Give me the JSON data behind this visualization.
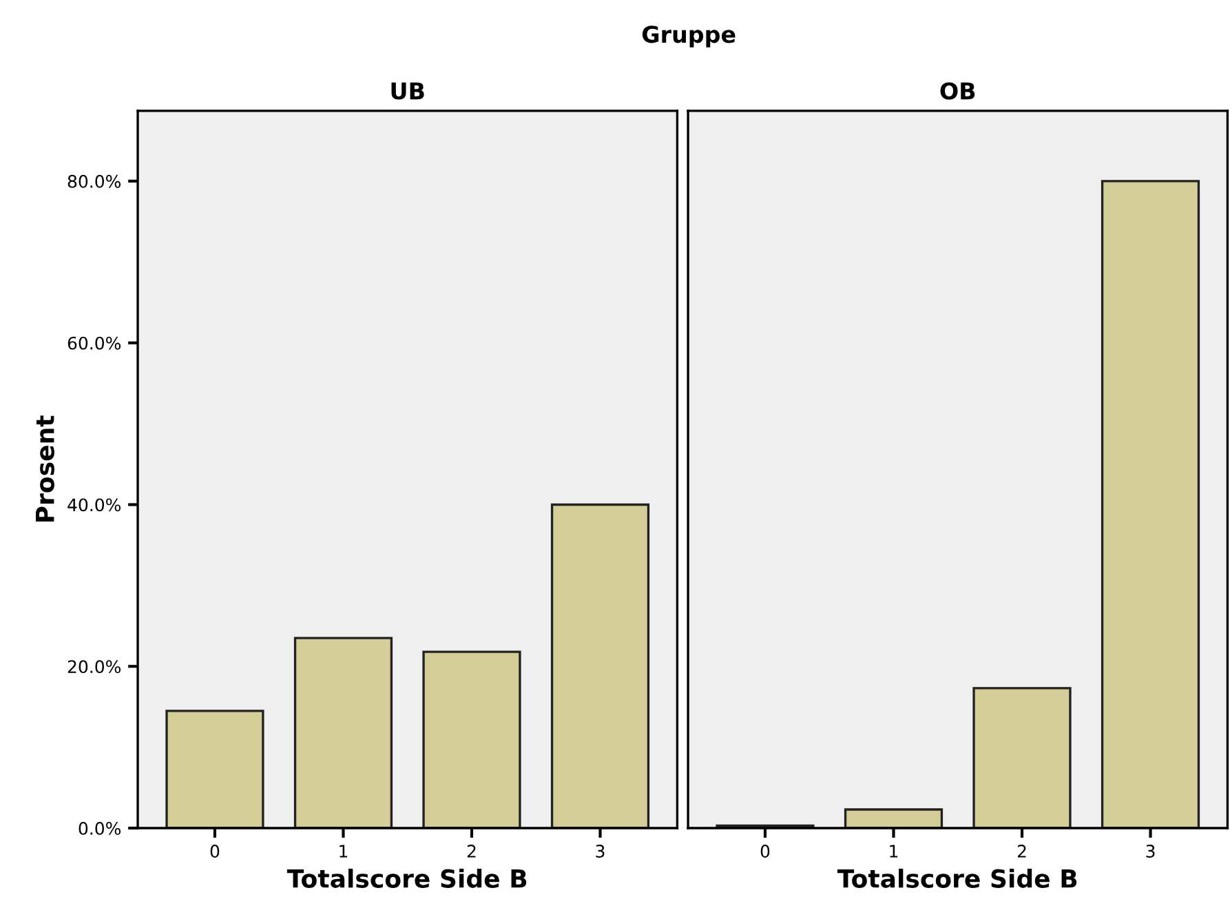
{
  "chart_data": [
    {
      "type": "bar",
      "title": "UB",
      "annotations": [
        "Gruppe"
      ],
      "xlabel": "Totalscore Side B",
      "ylabel": "Prosent",
      "categories": [
        "0",
        "1",
        "2",
        "3"
      ],
      "values": [
        14.5,
        23.5,
        21.8,
        40.0
      ],
      "color": "#d3cd96",
      "ylim": [
        0,
        88.7
      ],
      "yticks": [
        {
          "value": 0,
          "label": "0.0%"
        },
        {
          "value": 20,
          "label": "20.0%"
        },
        {
          "value": 40,
          "label": "40.0%"
        },
        {
          "value": 60,
          "label": "60.0%"
        },
        {
          "value": 80,
          "label": "80.0%"
        }
      ],
      "grid": false
    },
    {
      "type": "bar",
      "title": "OB",
      "xlabel": "Totalscore Side B",
      "categories": [
        "0",
        "1",
        "2",
        "3"
      ],
      "values": [
        0.3,
        2.3,
        17.3,
        80.0
      ],
      "color": "#d3cd96",
      "ylim": [
        0,
        88.7
      ],
      "grid": false,
      "tick_labels": "x"
    }
  ]
}
